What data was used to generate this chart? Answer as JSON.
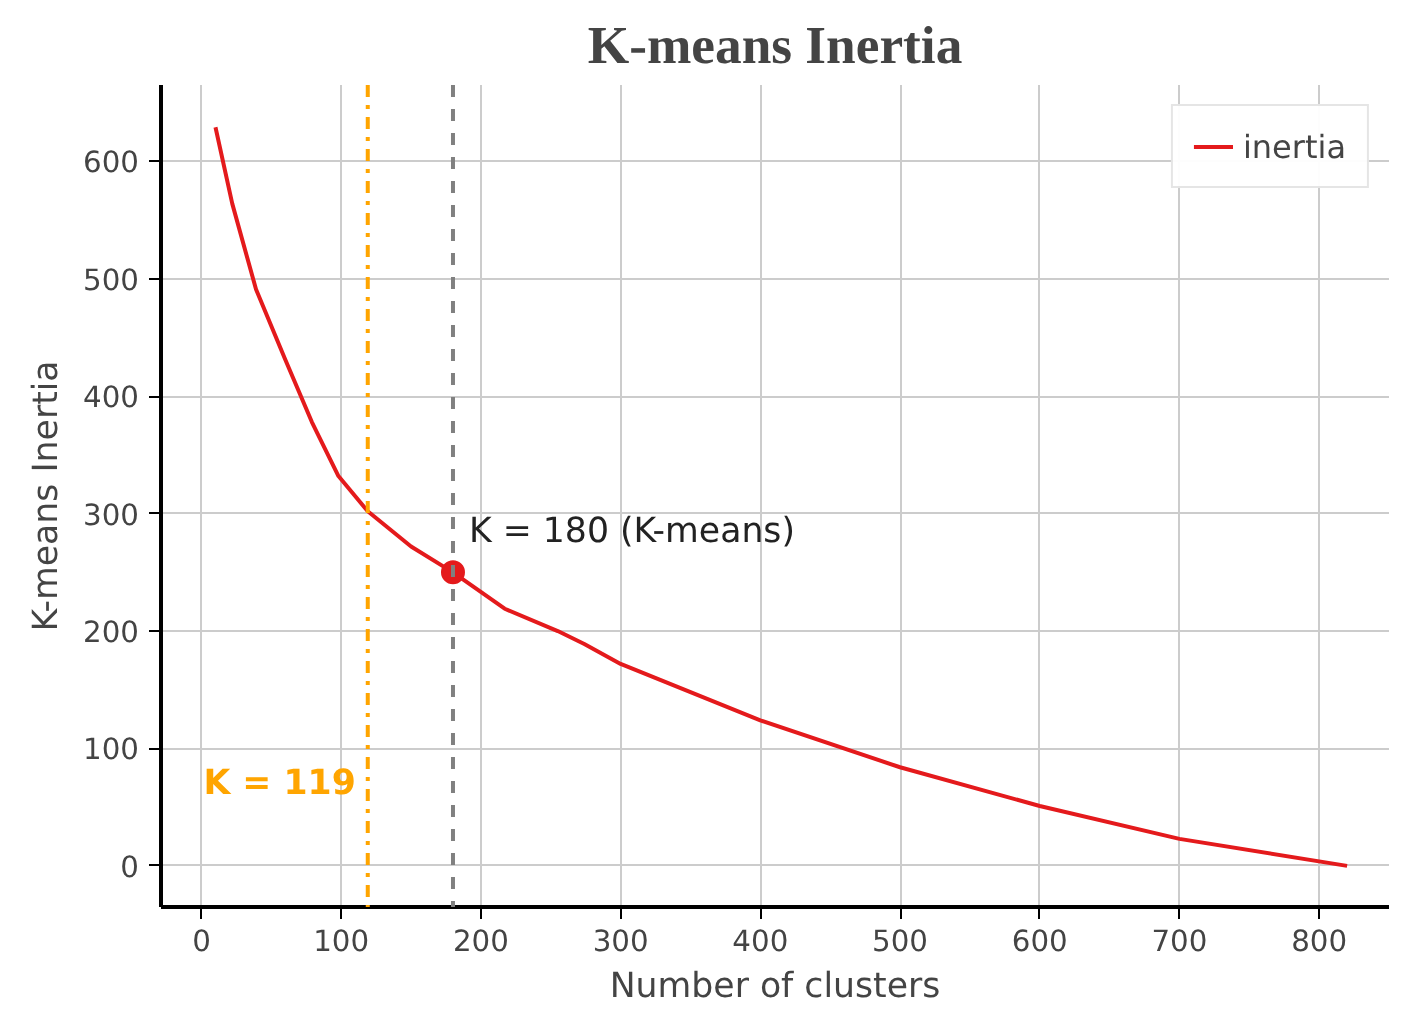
{
  "chart_data": {
    "type": "line",
    "title": "K-means Inertia",
    "xlabel": "Number of clusters",
    "ylabel": "K-means Inertia",
    "xlim": [
      -29,
      850
    ],
    "ylim": [
      -35,
      665
    ],
    "xticks": [
      0,
      100,
      200,
      300,
      400,
      500,
      600,
      700,
      800
    ],
    "yticks": [
      0,
      100,
      200,
      300,
      400,
      500,
      600
    ],
    "grid": true,
    "legend": "top right",
    "line_style": "solid",
    "series": [
      {
        "name": "inertia",
        "color": "#e41a1c",
        "x": [
          10,
          22,
          39,
          60,
          79,
          98,
          119,
          150,
          180,
          217,
          255,
          274,
          300,
          400,
          500,
          600,
          700,
          820
        ],
        "values": [
          629,
          564,
          491,
          431,
          378,
          332,
          302,
          272,
          250,
          219,
          200,
          189,
          172,
          124,
          84,
          51,
          23,
          0
        ]
      },
      {
        "type": "scatter",
        "marker": "circle",
        "color": "#e41a1c",
        "x": [
          180
        ],
        "values": [
          250
        ]
      }
    ],
    "ref_lines": [
      {
        "axis": "x",
        "value": 119,
        "label": "K = 119",
        "color": "#ffa500",
        "line_style": "dashdot"
      },
      {
        "axis": "x",
        "value": 180,
        "color": "#808080",
        "line_style": "dashed"
      }
    ],
    "annotations": [
      {
        "text": "K = 180 (K-means)",
        "x": 180,
        "y": 250
      }
    ]
  }
}
